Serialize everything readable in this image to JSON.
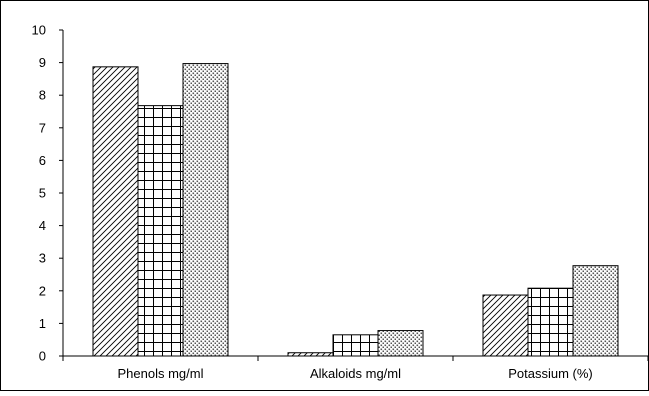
{
  "chart_data": {
    "type": "bar",
    "title": "",
    "xlabel": "",
    "ylabel": "",
    "categories": [
      "Phenols mg/ml",
      "Alkaloids mg/ml",
      "Potassium (%)"
    ],
    "series": [
      {
        "values": [
          8.87,
          0.1,
          1.87
        ],
        "pattern": "diagonal-hatch"
      },
      {
        "values": [
          7.68,
          0.65,
          2.08
        ],
        "pattern": "grid"
      },
      {
        "values": [
          8.97,
          0.78,
          2.77
        ],
        "pattern": "dots"
      }
    ],
    "ylim": [
      0,
      10
    ],
    "yticks": [
      "0",
      "1",
      "2",
      "3",
      "4",
      "5",
      "6",
      "7",
      "8",
      "9",
      "10"
    ],
    "grid": false,
    "legend": "none"
  }
}
